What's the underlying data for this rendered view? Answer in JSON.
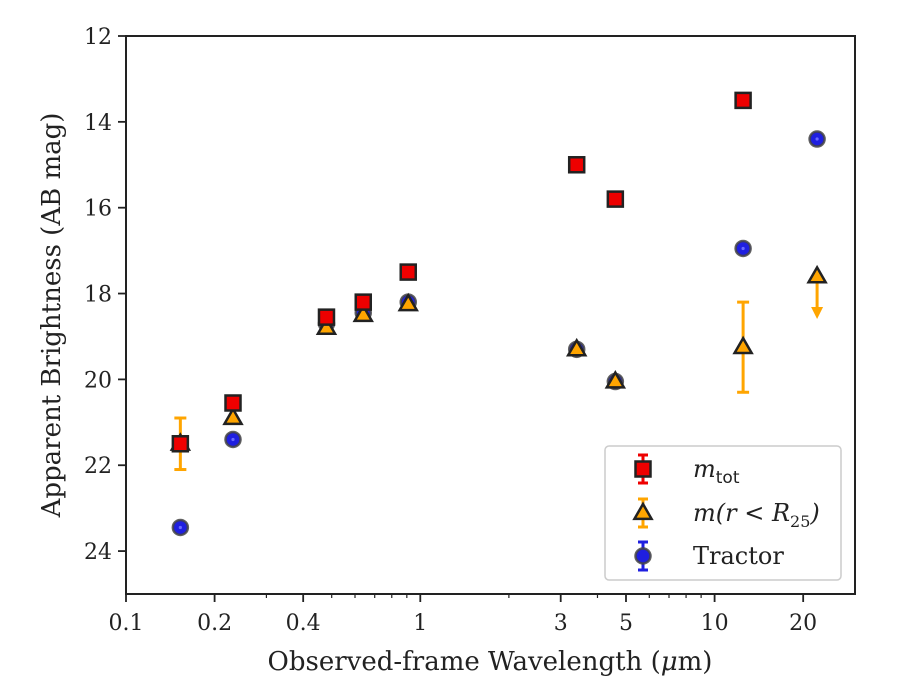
{
  "chart_data": {
    "type": "scatter",
    "xlabel": "Observed-frame Wavelength (μm)",
    "ylabel": "Apparent Brightness (AB mag)",
    "xscale": "log",
    "xlim": [
      0.1,
      30
    ],
    "ylim": [
      25,
      12
    ],
    "y_inverted": true,
    "grid": false,
    "legend_position": "bottom-right",
    "xticks": [
      {
        "value": 0.1,
        "label": "0.1"
      },
      {
        "value": 0.2,
        "label": "0.2"
      },
      {
        "value": 0.4,
        "label": "0.4"
      },
      {
        "value": 1,
        "label": "1"
      },
      {
        "value": 3,
        "label": "3"
      },
      {
        "value": 5,
        "label": "5"
      },
      {
        "value": 10,
        "label": "10"
      },
      {
        "value": 20,
        "label": "20"
      }
    ],
    "yticks": [
      {
        "value": 12,
        "label": "12"
      },
      {
        "value": 14,
        "label": "14"
      },
      {
        "value": 16,
        "label": "16"
      },
      {
        "value": 18,
        "label": "18"
      },
      {
        "value": 20,
        "label": "20"
      },
      {
        "value": 22,
        "label": "22"
      },
      {
        "value": 24,
        "label": "24"
      }
    ],
    "series": [
      {
        "name": "Tractor",
        "legend_plain": "Tractor",
        "marker": "circle",
        "color": "#1f1fe0",
        "errorbar_color": "#1f1fe0",
        "points": [
          {
            "x": 0.153,
            "y": 23.45
          },
          {
            "x": 0.231,
            "y": 21.4
          },
          {
            "x": 0.48,
            "y": 18.7
          },
          {
            "x": 0.64,
            "y": 18.45
          },
          {
            "x": 0.91,
            "y": 18.2
          },
          {
            "x": 3.4,
            "y": 19.3
          },
          {
            "x": 4.6,
            "y": 20.05
          },
          {
            "x": 12.5,
            "y": 16.95
          },
          {
            "x": 22.3,
            "y": 14.4
          }
        ]
      },
      {
        "name": "m(r<R25)",
        "legend_plain": "m(r<R25)",
        "marker": "triangle",
        "color": "#ffa500",
        "errorbar_color": "#ffa500",
        "points": [
          {
            "x": 0.153,
            "y": 21.5,
            "err": 0.6
          },
          {
            "x": 0.231,
            "y": 20.9
          },
          {
            "x": 0.48,
            "y": 18.8
          },
          {
            "x": 0.64,
            "y": 18.5
          },
          {
            "x": 0.91,
            "y": 18.25
          },
          {
            "x": 3.4,
            "y": 19.3
          },
          {
            "x": 4.6,
            "y": 20.05
          },
          {
            "x": 12.5,
            "y": 19.25,
            "err": 1.05
          },
          {
            "x": 22.3,
            "y": 17.6,
            "upper_limit": true,
            "limit_to": 18.5
          }
        ]
      },
      {
        "name": "mtot",
        "legend_plain": "mtot",
        "marker": "square",
        "color": "#ee0000",
        "errorbar_color": "#ee0000",
        "points": [
          {
            "x": 0.153,
            "y": 21.5
          },
          {
            "x": 0.231,
            "y": 20.55
          },
          {
            "x": 0.48,
            "y": 18.55
          },
          {
            "x": 0.64,
            "y": 18.2
          },
          {
            "x": 0.91,
            "y": 17.5
          },
          {
            "x": 3.4,
            "y": 15.0
          },
          {
            "x": 4.6,
            "y": 15.8
          },
          {
            "x": 12.5,
            "y": 13.5
          }
        ]
      }
    ],
    "legend_order": [
      "mtot",
      "m(r<R25)",
      "Tractor"
    ]
  }
}
